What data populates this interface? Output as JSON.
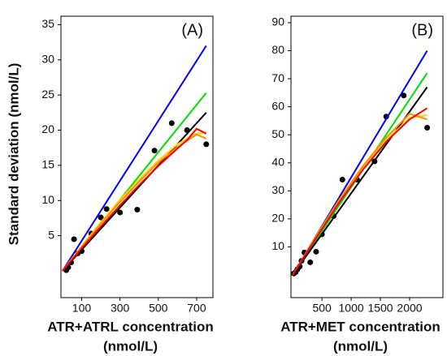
{
  "chart_data": [
    {
      "type": "scatter",
      "ylabel": "Standard deviation (nmol/L)",
      "xlabel": [
        "ATR+ATRL concentration",
        "(nmol/L)"
      ],
      "annotation": "(A)",
      "xlim": [
        -8,
        785
      ],
      "ylim": [
        -3.8,
        36.2
      ],
      "xticks": [
        100,
        300,
        500,
        700
      ],
      "yticks": [
        5,
        10,
        15,
        20,
        25,
        30,
        35
      ],
      "points": {
        "color": "#000000",
        "x": [
          20,
          30,
          45,
          60,
          80,
          100,
          150,
          200,
          230,
          300,
          390,
          480,
          570,
          650,
          750
        ],
        "values": [
          0.1,
          0.5,
          1.2,
          4.5,
          2.5,
          2.8,
          5.3,
          7.6,
          8.8,
          8.3,
          8.7,
          17.1,
          21,
          20,
          18
        ]
      },
      "series": [
        {
          "color": "#0000ff",
          "x": [
            0,
            750
          ],
          "values": [
            0,
            32
          ]
        },
        {
          "color": "#00e000",
          "x": [
            0,
            750
          ],
          "values": [
            0,
            25.3
          ]
        },
        {
          "color": "#000000",
          "x": [
            0,
            750
          ],
          "values": [
            0,
            22.5
          ]
        },
        {
          "color": "#ffd700",
          "x": [
            0,
            100,
            200,
            300,
            400,
            500,
            600,
            700,
            750
          ],
          "values": [
            0,
            3.5,
            6.9,
            10.1,
            13,
            15.7,
            18,
            19.5,
            19.7
          ]
        },
        {
          "color": "#ff8c00",
          "x": [
            0,
            100,
            200,
            300,
            400,
            500,
            600,
            700,
            750
          ],
          "values": [
            0,
            3.4,
            6.7,
            9.8,
            12.7,
            15.4,
            17.6,
            19.4,
            18.8
          ]
        },
        {
          "color": "#ff0000",
          "x": [
            0,
            100,
            200,
            300,
            400,
            500,
            600,
            650,
            700,
            750
          ],
          "values": [
            0,
            3.2,
            6.3,
            9.3,
            12.2,
            14.9,
            17.4,
            18.6,
            20.2,
            19.5
          ]
        }
      ]
    },
    {
      "type": "scatter",
      "xlabel": [
        "ATR+MET concentration",
        "(nmol/L)"
      ],
      "annotation": "(B)",
      "xlim": [
        -30,
        2570
      ],
      "ylim": [
        -8.1,
        92.3
      ],
      "xticks": [
        500,
        1000,
        1500,
        2000
      ],
      "yticks": [
        10,
        20,
        30,
        40,
        50,
        60,
        70,
        80,
        90
      ],
      "points": {
        "color": "#000000",
        "x": [
          20,
          50,
          80,
          120,
          150,
          200,
          300,
          400,
          500,
          700,
          850,
          1100,
          1400,
          1600,
          1900,
          2300
        ],
        "values": [
          0.5,
          1,
          2,
          3,
          5,
          8,
          4.5,
          8.3,
          14.5,
          21,
          34,
          34,
          40.5,
          56.5,
          64,
          52.5
        ]
      },
      "series": [
        {
          "color": "#0000ff",
          "x": [
            0,
            2300
          ],
          "values": [
            0,
            80
          ]
        },
        {
          "color": "#00e000",
          "x": [
            0,
            2300
          ],
          "values": [
            0,
            72
          ]
        },
        {
          "color": "#000000",
          "x": [
            0,
            2300
          ],
          "values": [
            0,
            67
          ]
        },
        {
          "color": "#ffd700",
          "x": [
            0,
            400,
            800,
            1200,
            1600,
            2000,
            2300
          ],
          "values": [
            0,
            13.5,
            26.5,
            38,
            48,
            56,
            57
          ]
        },
        {
          "color": "#ff8c00",
          "x": [
            0,
            400,
            800,
            1200,
            1600,
            2000,
            2300
          ],
          "values": [
            0,
            13.8,
            27,
            38.8,
            49,
            57.5,
            55.5
          ]
        },
        {
          "color": "#ff0000",
          "x": [
            0,
            400,
            800,
            1200,
            1600,
            2000,
            2300
          ],
          "values": [
            0,
            13.2,
            26,
            37.5,
            47.5,
            55.5,
            59.5
          ]
        }
      ]
    }
  ]
}
